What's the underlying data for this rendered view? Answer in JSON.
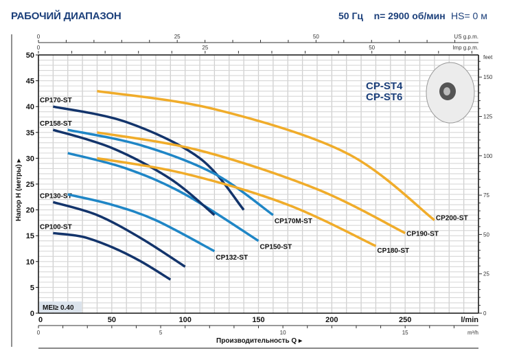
{
  "header": {
    "title": "РАБОЧИЙ ДИАПАЗОН",
    "params": "50 Гц    n= 2900 об/мин",
    "hs": "HS= 0 м"
  },
  "models": [
    "CP-ST4",
    "CP-ST6"
  ],
  "mei_badge": "MEI≥ 0.40",
  "chart_data": {
    "type": "line",
    "title": "РАБОЧИЙ ДИАПАЗОН",
    "xlabel": "Производительность Q",
    "ylabel": "Напор H (метры)",
    "x_unit": "l/min",
    "xlim": [
      0,
      300
    ],
    "ylim": [
      0,
      50
    ],
    "x_ticks": [
      0,
      50,
      100,
      150,
      200,
      250
    ],
    "y_ticks": [
      0,
      5,
      10,
      15,
      20,
      25,
      30,
      35,
      40,
      45,
      50
    ],
    "grid": true,
    "secondary_axes": {
      "us_gpm": {
        "label": "US g.p.m.",
        "ticks": [
          0,
          25,
          50
        ]
      },
      "imp_gpm": {
        "label": "Imp g.p.m.",
        "ticks": [
          0,
          25,
          50
        ]
      },
      "m3h": {
        "label": "m³/h",
        "ticks": [
          0,
          5,
          10,
          15
        ]
      },
      "feet": {
        "label": "feet",
        "ticks": [
          0,
          25,
          50,
          75,
          100,
          125,
          150
        ]
      }
    },
    "series": [
      {
        "name": "CP100-ST",
        "color": "#13346b",
        "points": [
          [
            10,
            15.5
          ],
          [
            30,
            14.8
          ],
          [
            50,
            12.8
          ],
          [
            70,
            10
          ],
          [
            90,
            6.5
          ]
        ]
      },
      {
        "name": "CP130-ST",
        "color": "#13346b",
        "points": [
          [
            10,
            21.5
          ],
          [
            40,
            19
          ],
          [
            70,
            14.5
          ],
          [
            100,
            9
          ]
        ]
      },
      {
        "name": "CP132-ST",
        "color": "#1f86c6",
        "points": [
          [
            20,
            23
          ],
          [
            50,
            21
          ],
          [
            80,
            18
          ],
          [
            120,
            12
          ]
        ]
      },
      {
        "name": "CP150-ST",
        "color": "#1f86c6",
        "points": [
          [
            20,
            31
          ],
          [
            60,
            28
          ],
          [
            100,
            23
          ],
          [
            150,
            14
          ]
        ]
      },
      {
        "name": "CP158-ST",
        "color": "#13346b",
        "points": [
          [
            10,
            35.5
          ],
          [
            50,
            32
          ],
          [
            90,
            26
          ],
          [
            120,
            19
          ]
        ]
      },
      {
        "name": "CP170-ST",
        "color": "#13346b",
        "points": [
          [
            10,
            40
          ],
          [
            60,
            37
          ],
          [
            110,
            30
          ],
          [
            140,
            20
          ]
        ]
      },
      {
        "name": "CP170M-ST",
        "color": "#1f86c6",
        "points": [
          [
            20,
            35.5
          ],
          [
            70,
            32.5
          ],
          [
            120,
            27
          ],
          [
            160,
            19
          ]
        ]
      },
      {
        "name": "CP180-ST",
        "color": "#f0ac2a",
        "points": [
          [
            40,
            30
          ],
          [
            100,
            27
          ],
          [
            170,
            21
          ],
          [
            230,
            13
          ]
        ]
      },
      {
        "name": "CP190-ST",
        "color": "#f0ac2a",
        "points": [
          [
            40,
            35
          ],
          [
            110,
            31.5
          ],
          [
            190,
            24
          ],
          [
            250,
            15.5
          ]
        ]
      },
      {
        "name": "CP200-ST",
        "color": "#f0ac2a",
        "points": [
          [
            40,
            43
          ],
          [
            120,
            39.5
          ],
          [
            210,
            31
          ],
          [
            270,
            18
          ]
        ]
      }
    ]
  }
}
